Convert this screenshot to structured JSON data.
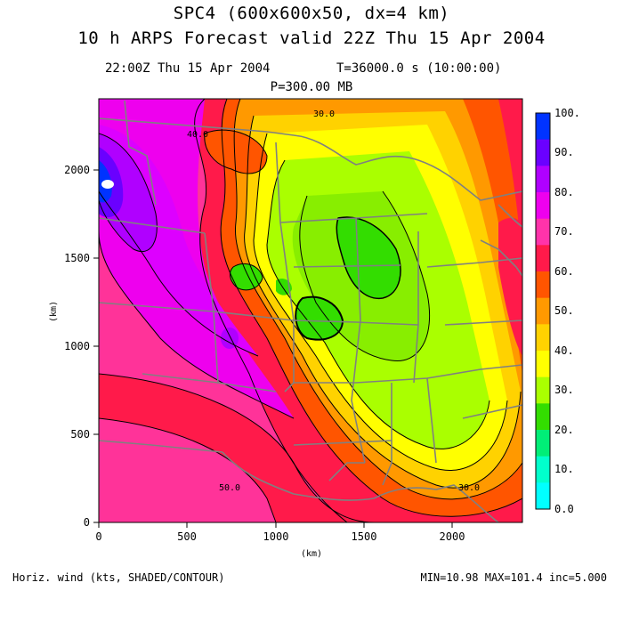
{
  "header": {
    "title_line1": "SPC4 (600x600x50, dx=4 km)",
    "title_line2": "10 h ARPS Forecast valid 22Z Thu 15 Apr 2004",
    "time_label": "22:00Z Thu 15 Apr 2004",
    "t_label": "T=36000.0 s (10:00:00)",
    "pressure_label": "P=300.00 MB"
  },
  "map": {
    "x_ticks": [
      "0",
      "500",
      "1000",
      "1500",
      "2000"
    ],
    "y_ticks": [
      "0",
      "500",
      "1000",
      "1500",
      "2000"
    ],
    "x_unit": "(km)",
    "y_unit": "(km)",
    "contour_labels": [
      "40.0",
      "30.0",
      "50.0",
      "30.0"
    ]
  },
  "colorbar": {
    "labels": [
      "100.",
      "90.",
      "80.",
      "70.",
      "60.",
      "50.",
      "40.",
      "30.",
      "20.",
      "10.",
      "0.0"
    ],
    "colors": [
      "#0033ff",
      "#6a00ff",
      "#b000ff",
      "#ee00ee",
      "#ff33aa",
      "#ff1a4a",
      "#ff5500",
      "#ff9900",
      "#ffd200",
      "#ffff00",
      "#aaff00",
      "#33dd00",
      "#00ee77",
      "#00ffcc",
      "#00ffff"
    ]
  },
  "footer": {
    "field_label": "Horiz. wind (kts, SHADED/CONTOUR)",
    "stats_label": "MIN=10.98 MAX=101.4 inc=5.000"
  }
}
